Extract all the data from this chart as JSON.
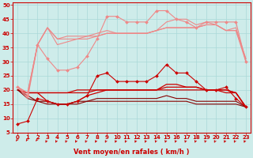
{
  "xlabel": "Vent moyen/en rafales ( km/h )",
  "background_color": "#ceecea",
  "grid_color": "#aad8d8",
  "xlim": [
    -0.5,
    23.5
  ],
  "ylim": [
    5,
    51
  ],
  "yticks": [
    5,
    10,
    15,
    20,
    25,
    30,
    35,
    40,
    45,
    50
  ],
  "xticks": [
    0,
    1,
    2,
    3,
    4,
    5,
    6,
    7,
    8,
    9,
    10,
    11,
    12,
    13,
    14,
    15,
    16,
    17,
    18,
    19,
    20,
    21,
    22,
    23
  ],
  "lines": [
    {
      "x": [
        0,
        1,
        2,
        3,
        4,
        5,
        6,
        7,
        8,
        9,
        10,
        11,
        12,
        13,
        14,
        15,
        16,
        17,
        18,
        19,
        20,
        21,
        22,
        23
      ],
      "y": [
        8,
        9,
        17,
        16,
        15,
        15,
        16,
        18,
        25,
        26,
        23,
        23,
        23,
        23,
        25,
        29,
        26,
        26,
        23,
        20,
        20,
        21,
        17,
        14
      ],
      "color": "#cc0000",
      "lw": 0.8,
      "marker": "D",
      "ms": 2.0,
      "zorder": 4
    },
    {
      "x": [
        0,
        1,
        2,
        3,
        4,
        5,
        6,
        7,
        8,
        9,
        10,
        11,
        12,
        13,
        14,
        15,
        16,
        17,
        18,
        19,
        20,
        21,
        22,
        23
      ],
      "y": [
        20,
        19,
        19,
        19,
        19,
        19,
        19,
        19,
        20,
        20,
        20,
        20,
        20,
        20,
        20,
        20,
        20,
        20,
        20,
        20,
        20,
        19,
        19,
        14
      ],
      "color": "#cc0000",
      "lw": 0.9,
      "marker": null,
      "ms": 0,
      "zorder": 3
    },
    {
      "x": [
        0,
        1,
        2,
        3,
        4,
        5,
        6,
        7,
        8,
        9,
        10,
        11,
        12,
        13,
        14,
        15,
        16,
        17,
        18,
        19,
        20,
        21,
        22,
        23
      ],
      "y": [
        20,
        19,
        19,
        19,
        19,
        19,
        20,
        20,
        20,
        20,
        20,
        20,
        20,
        20,
        20,
        21,
        21,
        21,
        21,
        20,
        20,
        20,
        19,
        14
      ],
      "color": "#cc0000",
      "lw": 0.9,
      "marker": null,
      "ms": 0,
      "zorder": 3
    },
    {
      "x": [
        0,
        1,
        2,
        3,
        4,
        5,
        6,
        7,
        8,
        9,
        10,
        11,
        12,
        13,
        14,
        15,
        16,
        17,
        18,
        19,
        20,
        21,
        22,
        23
      ],
      "y": [
        20,
        19,
        19,
        16,
        15,
        15,
        16,
        18,
        19,
        20,
        20,
        20,
        20,
        20,
        20,
        22,
        22,
        21,
        21,
        20,
        20,
        20,
        19,
        14
      ],
      "color": "#cc0000",
      "lw": 0.9,
      "marker": null,
      "ms": 0,
      "zorder": 3
    },
    {
      "x": [
        0,
        1,
        2,
        3,
        4,
        5,
        6,
        7,
        8,
        9,
        10,
        11,
        12,
        13,
        14,
        15,
        16,
        17,
        18,
        19,
        20,
        21,
        22,
        23
      ],
      "y": [
        20,
        17,
        16,
        16,
        15,
        15,
        16,
        16,
        17,
        17,
        17,
        17,
        17,
        17,
        17,
        18,
        17,
        17,
        16,
        16,
        16,
        16,
        16,
        14
      ],
      "color": "#880000",
      "lw": 0.8,
      "marker": null,
      "ms": 0,
      "zorder": 3
    },
    {
      "x": [
        0,
        1,
        2,
        3,
        4,
        5,
        6,
        7,
        8,
        9,
        10,
        11,
        12,
        13,
        14,
        15,
        16,
        17,
        18,
        19,
        20,
        21,
        22,
        23
      ],
      "y": [
        20,
        18,
        16,
        15,
        15,
        15,
        15,
        16,
        16,
        16,
        16,
        16,
        16,
        16,
        16,
        16,
        16,
        16,
        15,
        15,
        15,
        15,
        15,
        14
      ],
      "color": "#880000",
      "lw": 0.8,
      "marker": null,
      "ms": 0,
      "zorder": 3
    },
    {
      "x": [
        0,
        1,
        2,
        3,
        4,
        5,
        6,
        7,
        8,
        9,
        10,
        11,
        12,
        13,
        14,
        15,
        16,
        17,
        18,
        19,
        20,
        21,
        22,
        23
      ],
      "y": [
        21,
        18,
        36,
        31,
        27,
        27,
        28,
        32,
        38,
        46,
        46,
        44,
        44,
        44,
        48,
        48,
        45,
        44,
        42,
        44,
        44,
        44,
        44,
        30
      ],
      "color": "#ee8888",
      "lw": 0.8,
      "marker": "D",
      "ms": 2.0,
      "zorder": 4
    },
    {
      "x": [
        0,
        1,
        2,
        3,
        4,
        5,
        6,
        7,
        8,
        9,
        10,
        11,
        12,
        13,
        14,
        15,
        16,
        17,
        18,
        19,
        20,
        21,
        22,
        23
      ],
      "y": [
        21,
        17,
        36,
        42,
        36,
        37,
        38,
        39,
        40,
        41,
        40,
        40,
        40,
        40,
        41,
        44,
        45,
        45,
        43,
        44,
        43,
        41,
        41,
        30
      ],
      "color": "#ee8888",
      "lw": 0.8,
      "marker": null,
      "ms": 0,
      "zorder": 3
    },
    {
      "x": [
        0,
        1,
        2,
        3,
        4,
        5,
        6,
        7,
        8,
        9,
        10,
        11,
        12,
        13,
        14,
        15,
        16,
        17,
        18,
        19,
        20,
        21,
        22,
        23
      ],
      "y": [
        21,
        19,
        36,
        42,
        38,
        38,
        38,
        38,
        39,
        40,
        40,
        40,
        40,
        40,
        41,
        42,
        42,
        42,
        42,
        43,
        43,
        41,
        41,
        31
      ],
      "color": "#ee8888",
      "lw": 0.8,
      "marker": null,
      "ms": 0,
      "zorder": 3
    },
    {
      "x": [
        0,
        1,
        2,
        3,
        4,
        5,
        6,
        7,
        8,
        9,
        10,
        11,
        12,
        13,
        14,
        15,
        16,
        17,
        18,
        19,
        20,
        21,
        22,
        23
      ],
      "y": [
        21,
        19,
        36,
        42,
        38,
        39,
        39,
        39,
        39,
        40,
        40,
        40,
        40,
        40,
        41,
        42,
        42,
        42,
        42,
        43,
        43,
        41,
        42,
        31
      ],
      "color": "#ee8888",
      "lw": 0.8,
      "marker": null,
      "ms": 0,
      "zorder": 3
    }
  ],
  "arrow_color": "#cc0000",
  "border_color": "#cc0000",
  "tick_color": "#cc0000",
  "label_fontsize": 5.0,
  "xlabel_fontsize": 6.0
}
